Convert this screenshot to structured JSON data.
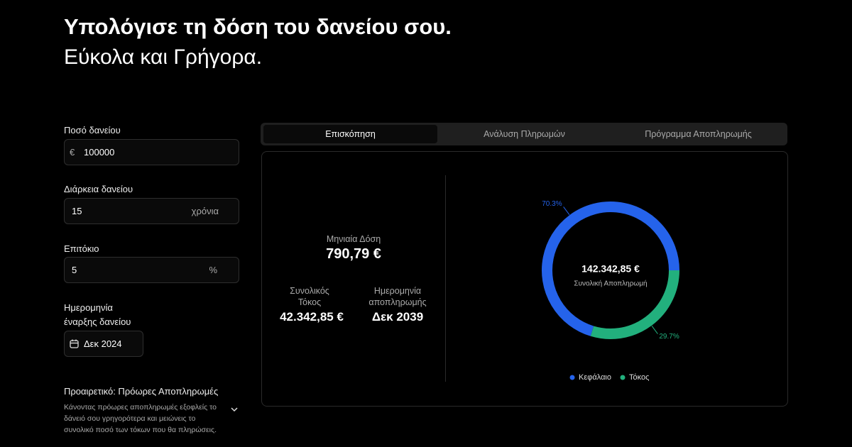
{
  "header": {
    "title": "Υπολόγισε τη δόση του δανείου σου.",
    "subtitle": "Εύκολα και Γρήγορα."
  },
  "form": {
    "amount": {
      "label": "Ποσό δανείου",
      "prefix": "€",
      "value": "100000"
    },
    "duration": {
      "label": "Διάρκεια δανείου",
      "value": "15",
      "suffix": "χρόνια"
    },
    "rate": {
      "label": "Επιτόκιο",
      "value": "5",
      "suffix": "%"
    },
    "start_date": {
      "label_lines": [
        "Ημερομηνία",
        "έναρξης δανείου"
      ],
      "value": "Δεκ 2024"
    },
    "prepayments": {
      "title": "Προαιρετικό: Πρόωρες Αποπληρωμές",
      "description_lines": [
        "Κάνοντας πρόωρες αποπληρωμές εξοφλείς το",
        "δάνειό σου γρηγορότερα και μειώνεις το",
        "συνολικό ποσό των τόκων που θα πληρώσεις."
      ]
    }
  },
  "tabs": [
    "Επισκόπηση",
    "Ανάλυση Πληρωμών",
    "Πρόγραμμα Αποπληρωμής"
  ],
  "active_tab": 0,
  "summary": {
    "monthly": {
      "label": "Μηνιαία Δόση",
      "value": "790,79 €"
    },
    "interest": {
      "label_lines": [
        "Συνολικός",
        "Τόκος"
      ],
      "value": "42.342,85 €"
    },
    "end_date": {
      "label_lines": [
        "Ημερομηνία",
        "αποπληρωμής"
      ],
      "value": "Δεκ 2039"
    }
  },
  "donut": {
    "type": "pie",
    "center_value": "142.342,85 €",
    "center_label": "Συνολική Αποπληρωμή",
    "series": [
      {
        "name": "Κεφάλαιο",
        "color": "#2563eb",
        "value": 70.3,
        "value_label": "70.3%"
      },
      {
        "name": "Τόκος",
        "color": "#22b07d",
        "value": 29.7,
        "value_label": "29.7%"
      }
    ]
  }
}
